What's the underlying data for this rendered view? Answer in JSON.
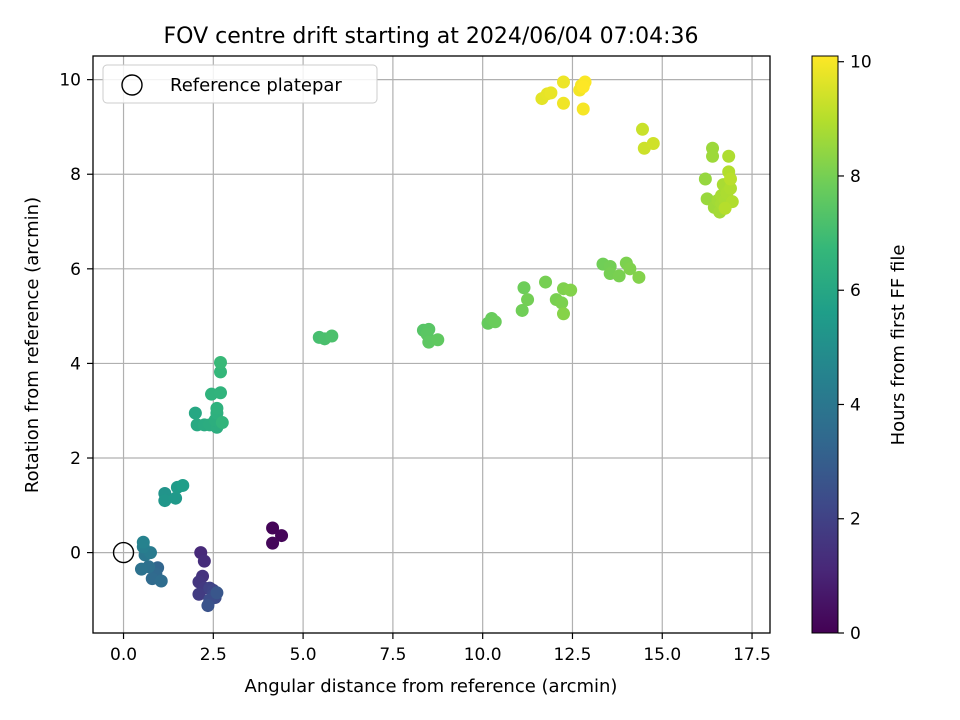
{
  "chart_data": {
    "type": "scatter",
    "title": "FOV centre drift starting at 2024/06/04 07:04:36",
    "xlabel": "Angular distance from reference (arcmin)",
    "ylabel": "Rotation from reference (arcmin)",
    "xlim": [
      -0.85,
      18.0
    ],
    "ylim": [
      -1.7,
      10.5
    ],
    "xticks": [
      0.0,
      2.5,
      5.0,
      7.5,
      10.0,
      12.5,
      15.0,
      17.5
    ],
    "xtick_labels": [
      "0.0",
      "2.5",
      "5.0",
      "7.5",
      "10.0",
      "12.5",
      "15.0",
      "17.5"
    ],
    "yticks": [
      0,
      2,
      4,
      6,
      8,
      10
    ],
    "ytick_labels": [
      "0",
      "2",
      "4",
      "6",
      "8",
      "10"
    ],
    "grid": true,
    "legend": {
      "placement": "upper-left",
      "entries": [
        "Reference platepar"
      ]
    },
    "reference_point": {
      "x": 0.0,
      "y": 0.0,
      "label": "Reference platepar",
      "marker": "open-circle"
    },
    "colorbar": {
      "label": "Hours from first FF file",
      "colormap": "viridis",
      "range": [
        0,
        10.1
      ],
      "ticks": [
        0,
        2,
        4,
        6,
        8,
        10
      ],
      "tick_labels": [
        "0",
        "2",
        "4",
        "6",
        "8",
        "10"
      ]
    },
    "series": [
      {
        "points": [
          [
            4.15,
            0.52,
            0.1
          ],
          [
            4.4,
            0.36,
            0.15
          ],
          [
            4.15,
            0.2,
            0.2
          ],
          [
            2.15,
            0.0,
            1.2
          ],
          [
            2.25,
            -0.18,
            1.3
          ],
          [
            2.2,
            -0.5,
            1.5
          ],
          [
            2.1,
            -0.62,
            1.6
          ],
          [
            2.25,
            -0.75,
            1.7
          ],
          [
            2.1,
            -0.88,
            1.8
          ],
          [
            2.4,
            -0.75,
            2.0
          ],
          [
            2.5,
            -0.8,
            2.1
          ],
          [
            2.5,
            -0.9,
            2.2
          ],
          [
            2.55,
            -0.95,
            2.3
          ],
          [
            2.4,
            -1.0,
            2.4
          ],
          [
            2.35,
            -1.12,
            2.6
          ],
          [
            2.6,
            -0.85,
            2.7
          ],
          [
            0.95,
            -0.32,
            3.3
          ],
          [
            0.9,
            -0.45,
            3.4
          ],
          [
            0.8,
            -0.55,
            3.5
          ],
          [
            1.05,
            -0.6,
            3.6
          ],
          [
            0.7,
            -0.3,
            3.7
          ],
          [
            0.5,
            -0.35,
            3.8
          ],
          [
            0.6,
            -0.05,
            4.0
          ],
          [
            0.75,
            0.0,
            4.2
          ],
          [
            0.55,
            0.12,
            4.3
          ],
          [
            0.55,
            0.22,
            4.5
          ],
          [
            1.15,
            1.25,
            5.2
          ],
          [
            1.15,
            1.1,
            5.3
          ],
          [
            1.45,
            1.15,
            5.4
          ],
          [
            1.5,
            1.38,
            5.5
          ],
          [
            1.65,
            1.42,
            5.6
          ],
          [
            2.0,
            2.95,
            6.0
          ],
          [
            2.05,
            2.7,
            6.1
          ],
          [
            2.25,
            2.7,
            6.2
          ],
          [
            2.4,
            2.7,
            6.25
          ],
          [
            2.6,
            2.65,
            6.3
          ],
          [
            2.55,
            2.8,
            6.35
          ],
          [
            2.6,
            2.95,
            6.4
          ],
          [
            2.6,
            3.05,
            6.45
          ],
          [
            2.45,
            3.35,
            6.5
          ],
          [
            2.7,
            3.38,
            6.55
          ],
          [
            2.75,
            2.75,
            6.6
          ],
          [
            2.7,
            3.82,
            6.7
          ],
          [
            2.7,
            4.02,
            6.8
          ],
          [
            5.45,
            4.55,
            7.1
          ],
          [
            5.6,
            4.52,
            7.15
          ],
          [
            5.8,
            4.58,
            7.2
          ],
          [
            8.35,
            4.7,
            7.4
          ],
          [
            8.5,
            4.72,
            7.45
          ],
          [
            8.45,
            4.62,
            7.5
          ],
          [
            8.5,
            4.45,
            7.55
          ],
          [
            8.75,
            4.5,
            7.6
          ],
          [
            10.15,
            4.85,
            7.7
          ],
          [
            10.25,
            4.95,
            7.75
          ],
          [
            10.35,
            4.88,
            7.8
          ],
          [
            11.15,
            5.6,
            7.85
          ],
          [
            11.1,
            5.12,
            7.9
          ],
          [
            11.25,
            5.35,
            7.95
          ],
          [
            11.75,
            5.72,
            8.0
          ],
          [
            12.05,
            5.35,
            8.05
          ],
          [
            12.2,
            5.28,
            8.1
          ],
          [
            12.25,
            5.58,
            8.15
          ],
          [
            12.45,
            5.55,
            8.2
          ],
          [
            12.25,
            5.05,
            8.25
          ],
          [
            13.35,
            6.1,
            7.9
          ],
          [
            13.55,
            6.05,
            7.95
          ],
          [
            13.55,
            5.9,
            8.0
          ],
          [
            13.8,
            5.85,
            8.05
          ],
          [
            14.0,
            6.12,
            8.1
          ],
          [
            14.1,
            6.0,
            8.15
          ],
          [
            14.35,
            5.82,
            8.2
          ],
          [
            16.2,
            7.9,
            8.5
          ],
          [
            16.25,
            7.48,
            8.55
          ],
          [
            16.4,
            8.55,
            8.6
          ],
          [
            16.4,
            8.38,
            8.62
          ],
          [
            16.45,
            7.3,
            8.65
          ],
          [
            16.55,
            7.45,
            8.7
          ],
          [
            16.6,
            7.2,
            8.72
          ],
          [
            16.65,
            7.38,
            8.75
          ],
          [
            16.65,
            7.55,
            8.78
          ],
          [
            16.7,
            7.78,
            8.8
          ],
          [
            16.75,
            7.45,
            8.82
          ],
          [
            16.8,
            7.6,
            8.85
          ],
          [
            16.85,
            8.38,
            8.88
          ],
          [
            16.9,
            7.7,
            8.9
          ],
          [
            16.95,
            7.42,
            8.92
          ],
          [
            16.85,
            8.05,
            8.95
          ],
          [
            16.75,
            7.28,
            9.0
          ],
          [
            16.9,
            7.9,
            9.05
          ],
          [
            14.45,
            8.95,
            9.3
          ],
          [
            14.5,
            8.55,
            9.35
          ],
          [
            14.75,
            8.65,
            9.4
          ],
          [
            11.65,
            9.6,
            9.7
          ],
          [
            11.8,
            9.7,
            9.75
          ],
          [
            11.9,
            9.72,
            9.8
          ],
          [
            12.25,
            9.95,
            9.85
          ],
          [
            12.25,
            9.5,
            9.9
          ],
          [
            12.7,
            9.78,
            9.95
          ],
          [
            12.75,
            9.88,
            9.98
          ],
          [
            12.8,
            9.38,
            10.0
          ],
          [
            12.85,
            9.95,
            10.05
          ],
          [
            12.8,
            9.85,
            10.1
          ]
        ]
      }
    ]
  }
}
